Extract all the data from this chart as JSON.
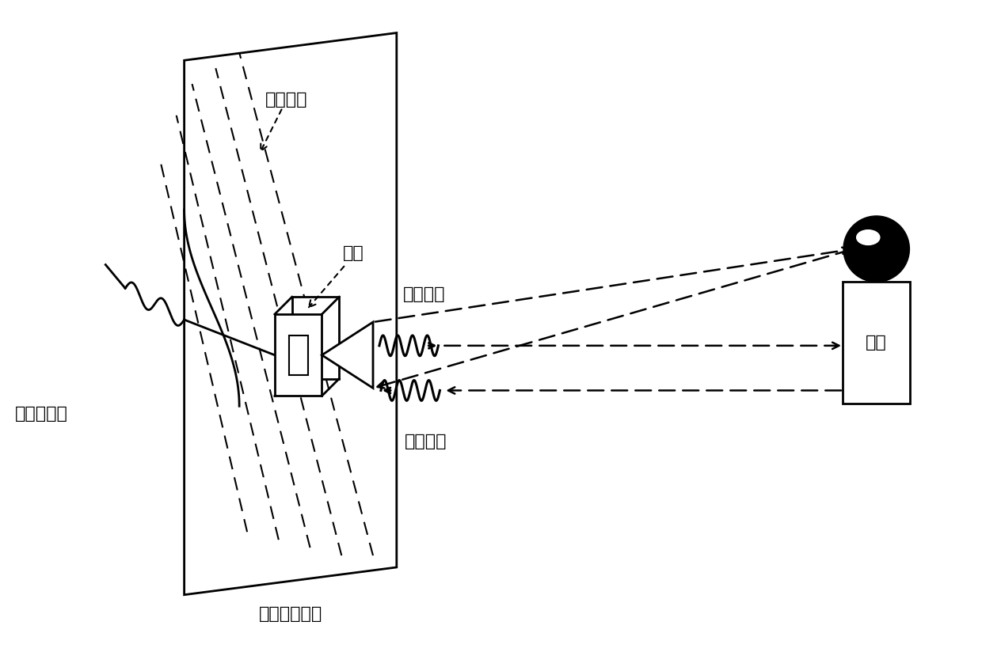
{
  "bg_color": "#ffffff",
  "line_color": "#000000",
  "text_color": "#000000",
  "labels": {
    "motion_track": "运动轨迹",
    "chassis": "机箱",
    "tx_signal": "发射信号",
    "rx_signal": "回波信号",
    "rf_cable": "射频传输线",
    "platform": "二维运动平台",
    "stand": "支架"
  },
  "fontsize": 16
}
